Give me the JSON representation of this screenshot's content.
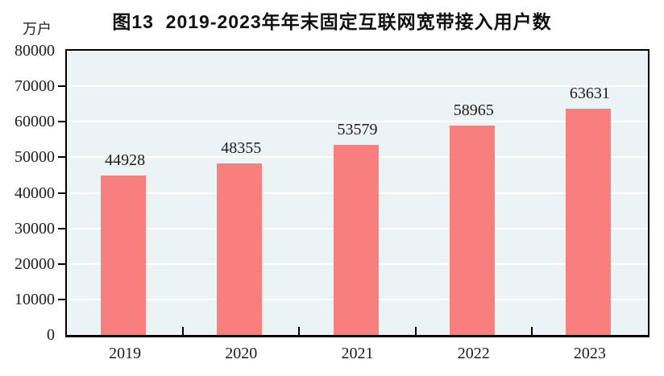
{
  "header": {
    "title": "图13  2019-2023年年末固定互联网宽带接入用户数",
    "unit_label": "万户"
  },
  "chart_data": {
    "type": "bar",
    "title": "图13  2019-2023年年末固定互联网宽带接入用户数",
    "categories": [
      "2019",
      "2020",
      "2021",
      "2022",
      "2023"
    ],
    "values": [
      44928,
      48355,
      53579,
      58965,
      63631
    ],
    "xlabel": "",
    "ylabel": "万户",
    "ylim": [
      0,
      80000
    ],
    "yticks": [
      0,
      10000,
      20000,
      30000,
      40000,
      50000,
      60000,
      70000,
      80000
    ],
    "grid": true,
    "legend": "none",
    "data_labels": true,
    "colors": {
      "bar": "#F97F7F",
      "plot_background": "#EBF3F5",
      "gridline": "#FFFFFF",
      "axis": "#000000",
      "text": "#1C1C1C"
    }
  }
}
